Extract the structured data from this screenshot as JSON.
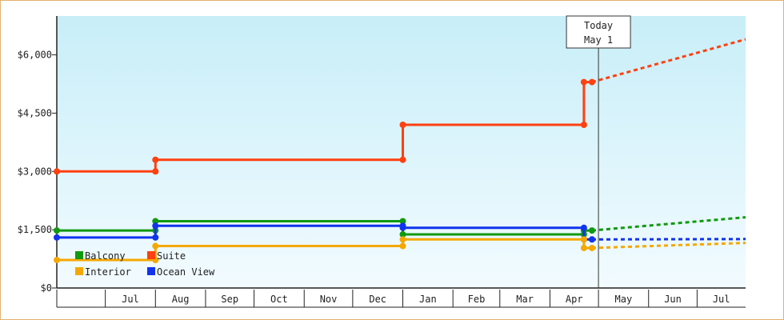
{
  "chart_data": {
    "type": "line",
    "step": true,
    "y_ticks": [
      "$0",
      "$1,500",
      "$3,000",
      "$4,500",
      "$6,000"
    ],
    "y_tick_values": [
      0,
      1500,
      3000,
      4500,
      6000
    ],
    "ylim": [
      0,
      7000
    ],
    "months": [
      "Jul",
      "Aug",
      "Sep",
      "Oct",
      "Nov",
      "Dec",
      "Jan",
      "Feb",
      "Mar",
      "Apr",
      "May",
      "Jun",
      "Jul"
    ],
    "xlim": [
      "2023-06-01",
      "2024-07-31"
    ],
    "today": {
      "line1": "Today",
      "line2": "May 1",
      "date": "2024-05-01"
    },
    "background_gradient": [
      "#c8eef8",
      "#f2fbff"
    ],
    "series": [
      {
        "name": "Suite",
        "color": "#ff4010",
        "points": [
          [
            "2023-06-01",
            3000
          ],
          [
            "2023-08-01",
            3000
          ],
          [
            "2023-08-01",
            3300
          ],
          [
            "2024-01-01",
            3300
          ],
          [
            "2024-01-01",
            4200
          ],
          [
            "2024-04-22",
            4200
          ],
          [
            "2024-04-22",
            5300
          ],
          [
            "2024-04-27",
            5300
          ]
        ],
        "projection": [
          [
            "2024-04-27",
            5300
          ],
          [
            "2024-07-31",
            6400
          ]
        ]
      },
      {
        "name": "Balcony",
        "color": "#119911",
        "points": [
          [
            "2023-06-01",
            1480
          ],
          [
            "2023-08-01",
            1480
          ],
          [
            "2023-08-01",
            1720
          ],
          [
            "2024-01-01",
            1720
          ],
          [
            "2024-01-01",
            1380
          ],
          [
            "2024-04-22",
            1380
          ],
          [
            "2024-04-22",
            1480
          ],
          [
            "2024-04-27",
            1480
          ]
        ],
        "projection": [
          [
            "2024-04-27",
            1480
          ],
          [
            "2024-07-31",
            1820
          ]
        ]
      },
      {
        "name": "Ocean View",
        "color": "#1133ee",
        "points": [
          [
            "2023-06-01",
            1300
          ],
          [
            "2023-08-01",
            1300
          ],
          [
            "2023-08-01",
            1600
          ],
          [
            "2024-01-01",
            1600
          ],
          [
            "2024-01-01",
            1550
          ],
          [
            "2024-04-22",
            1550
          ],
          [
            "2024-04-22",
            1250
          ],
          [
            "2024-04-27",
            1250
          ]
        ],
        "projection": [
          [
            "2024-04-27",
            1250
          ],
          [
            "2024-07-31",
            1260
          ]
        ]
      },
      {
        "name": "Interior",
        "color": "#f5a800",
        "points": [
          [
            "2023-06-01",
            720
          ],
          [
            "2023-08-01",
            720
          ],
          [
            "2023-08-01",
            1080
          ],
          [
            "2024-01-01",
            1080
          ],
          [
            "2024-01-01",
            1250
          ],
          [
            "2024-04-22",
            1250
          ],
          [
            "2024-04-22",
            1030
          ],
          [
            "2024-04-27",
            1030
          ]
        ],
        "projection": [
          [
            "2024-04-27",
            1030
          ],
          [
            "2024-07-31",
            1160
          ]
        ]
      }
    ],
    "legend": [
      {
        "name": "Balcony",
        "color": "#119911"
      },
      {
        "name": "Suite",
        "color": "#ff4010"
      },
      {
        "name": "Interior",
        "color": "#f5a800"
      },
      {
        "name": "Ocean View",
        "color": "#1133ee"
      }
    ],
    "legend_position": "bottom-left",
    "grid": false
  }
}
